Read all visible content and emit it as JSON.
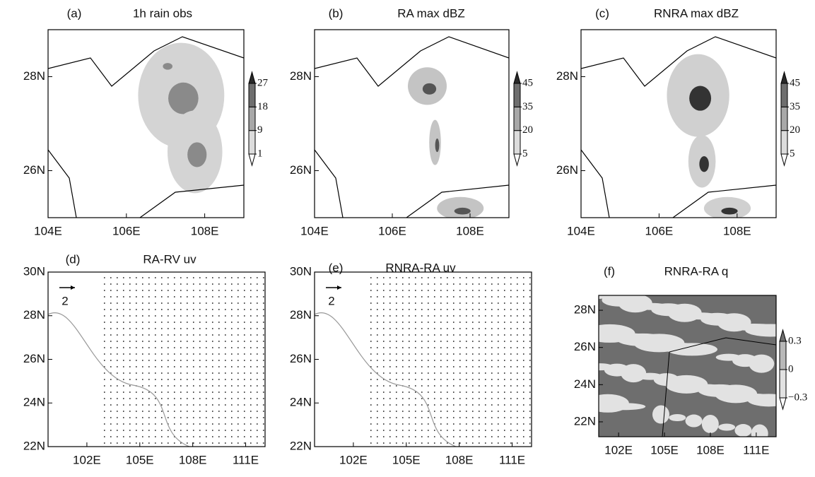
{
  "chart_data": [
    {
      "type": "map",
      "label": "(a)",
      "title": "1h rain obs",
      "xlim": [
        104,
        109
      ],
      "ylim": [
        25,
        29
      ],
      "xticks": [
        {
          "value": 104,
          "label": "104E"
        },
        {
          "value": 106,
          "label": "106E"
        },
        {
          "value": 108,
          "label": "108E"
        }
      ],
      "yticks": [
        {
          "value": 26,
          "label": "26N"
        },
        {
          "value": 28,
          "label": "28N"
        }
      ],
      "colorbar": {
        "ticks": [
          1,
          9,
          18,
          27
        ],
        "colors": [
          "#ffffff",
          "#dcdcdc",
          "#a8a8a8",
          "#6e6e6e",
          "#2a2a2a"
        ]
      }
    },
    {
      "type": "map",
      "label": "(b)",
      "title": "RA max dBZ",
      "xlim": [
        104,
        109
      ],
      "ylim": [
        25,
        29
      ],
      "xticks": [
        {
          "value": 104,
          "label": "104E"
        },
        {
          "value": 106,
          "label": "106E"
        },
        {
          "value": 108,
          "label": "108E"
        }
      ],
      "yticks": [
        {
          "value": 26,
          "label": "26N"
        },
        {
          "value": 28,
          "label": "28N"
        }
      ],
      "colorbar": {
        "ticks": [
          5,
          20,
          35,
          45
        ],
        "colors": [
          "#ffffff",
          "#dcdcdc",
          "#a8a8a8",
          "#6e6e6e",
          "#2a2a2a"
        ]
      }
    },
    {
      "type": "map",
      "label": "(c)",
      "title": "RNRA max dBZ",
      "xlim": [
        104,
        109
      ],
      "ylim": [
        25,
        29
      ],
      "xticks": [
        {
          "value": 104,
          "label": "104E"
        },
        {
          "value": 106,
          "label": "106E"
        },
        {
          "value": 108,
          "label": "108E"
        }
      ],
      "yticks": [
        {
          "value": 26,
          "label": "26N"
        },
        {
          "value": 28,
          "label": "28N"
        }
      ],
      "colorbar": {
        "ticks": [
          5,
          20,
          35,
          45
        ],
        "colors": [
          "#ffffff",
          "#dcdcdc",
          "#a8a8a8",
          "#6e6e6e",
          "#2a2a2a"
        ]
      }
    },
    {
      "type": "vector",
      "label": "(d)",
      "title": "RA-RV uv",
      "xlim": [
        99.8,
        112.1
      ],
      "ylim": [
        22,
        30
      ],
      "reference_vector": 2,
      "xticks": [
        {
          "value": 102,
          "label": "102E"
        },
        {
          "value": 105,
          "label": "105E"
        },
        {
          "value": 108,
          "label": "108E"
        },
        {
          "value": 111,
          "label": "111E"
        }
      ],
      "yticks": [
        {
          "value": 22,
          "label": "22N"
        },
        {
          "value": 24,
          "label": "24N"
        },
        {
          "value": 26,
          "label": "26N"
        },
        {
          "value": 28,
          "label": "28N"
        },
        {
          "value": 30,
          "label": "30N"
        }
      ]
    },
    {
      "type": "vector",
      "label": "(e)",
      "title": "RNRA-RA uv",
      "xlim": [
        99.8,
        112.1
      ],
      "ylim": [
        22,
        30
      ],
      "reference_vector": 2,
      "xticks": [
        {
          "value": 102,
          "label": "102E"
        },
        {
          "value": 105,
          "label": "105E"
        },
        {
          "value": 108,
          "label": "108E"
        },
        {
          "value": 111,
          "label": "111E"
        }
      ],
      "yticks": [
        {
          "value": 22,
          "label": "22N"
        },
        {
          "value": 24,
          "label": "24N"
        },
        {
          "value": 26,
          "label": "26N"
        },
        {
          "value": 28,
          "label": "28N"
        },
        {
          "value": 30,
          "label": "30N"
        }
      ]
    },
    {
      "type": "map",
      "label": "(f)",
      "title": "RNRA-RA q",
      "xlim": [
        100.7,
        112.3
      ],
      "ylim": [
        21.2,
        28.8
      ],
      "xticks": [
        {
          "value": 102,
          "label": "102E"
        },
        {
          "value": 105,
          "label": "105E"
        },
        {
          "value": 108,
          "label": "108E"
        },
        {
          "value": 111,
          "label": "111E"
        }
      ],
      "yticks": [
        {
          "value": 22,
          "label": "22N"
        },
        {
          "value": 24,
          "label": "24N"
        },
        {
          "value": 26,
          "label": "26N"
        },
        {
          "value": 28,
          "label": "28N"
        }
      ],
      "colorbar": {
        "ticks": [
          {
            "value": -0.3,
            "label": "−0.3"
          },
          0,
          0.3
        ],
        "colors": [
          "#ffffff",
          "#e2e2e2",
          "#b8b8b8",
          "#6e6e6e"
        ]
      }
    }
  ]
}
